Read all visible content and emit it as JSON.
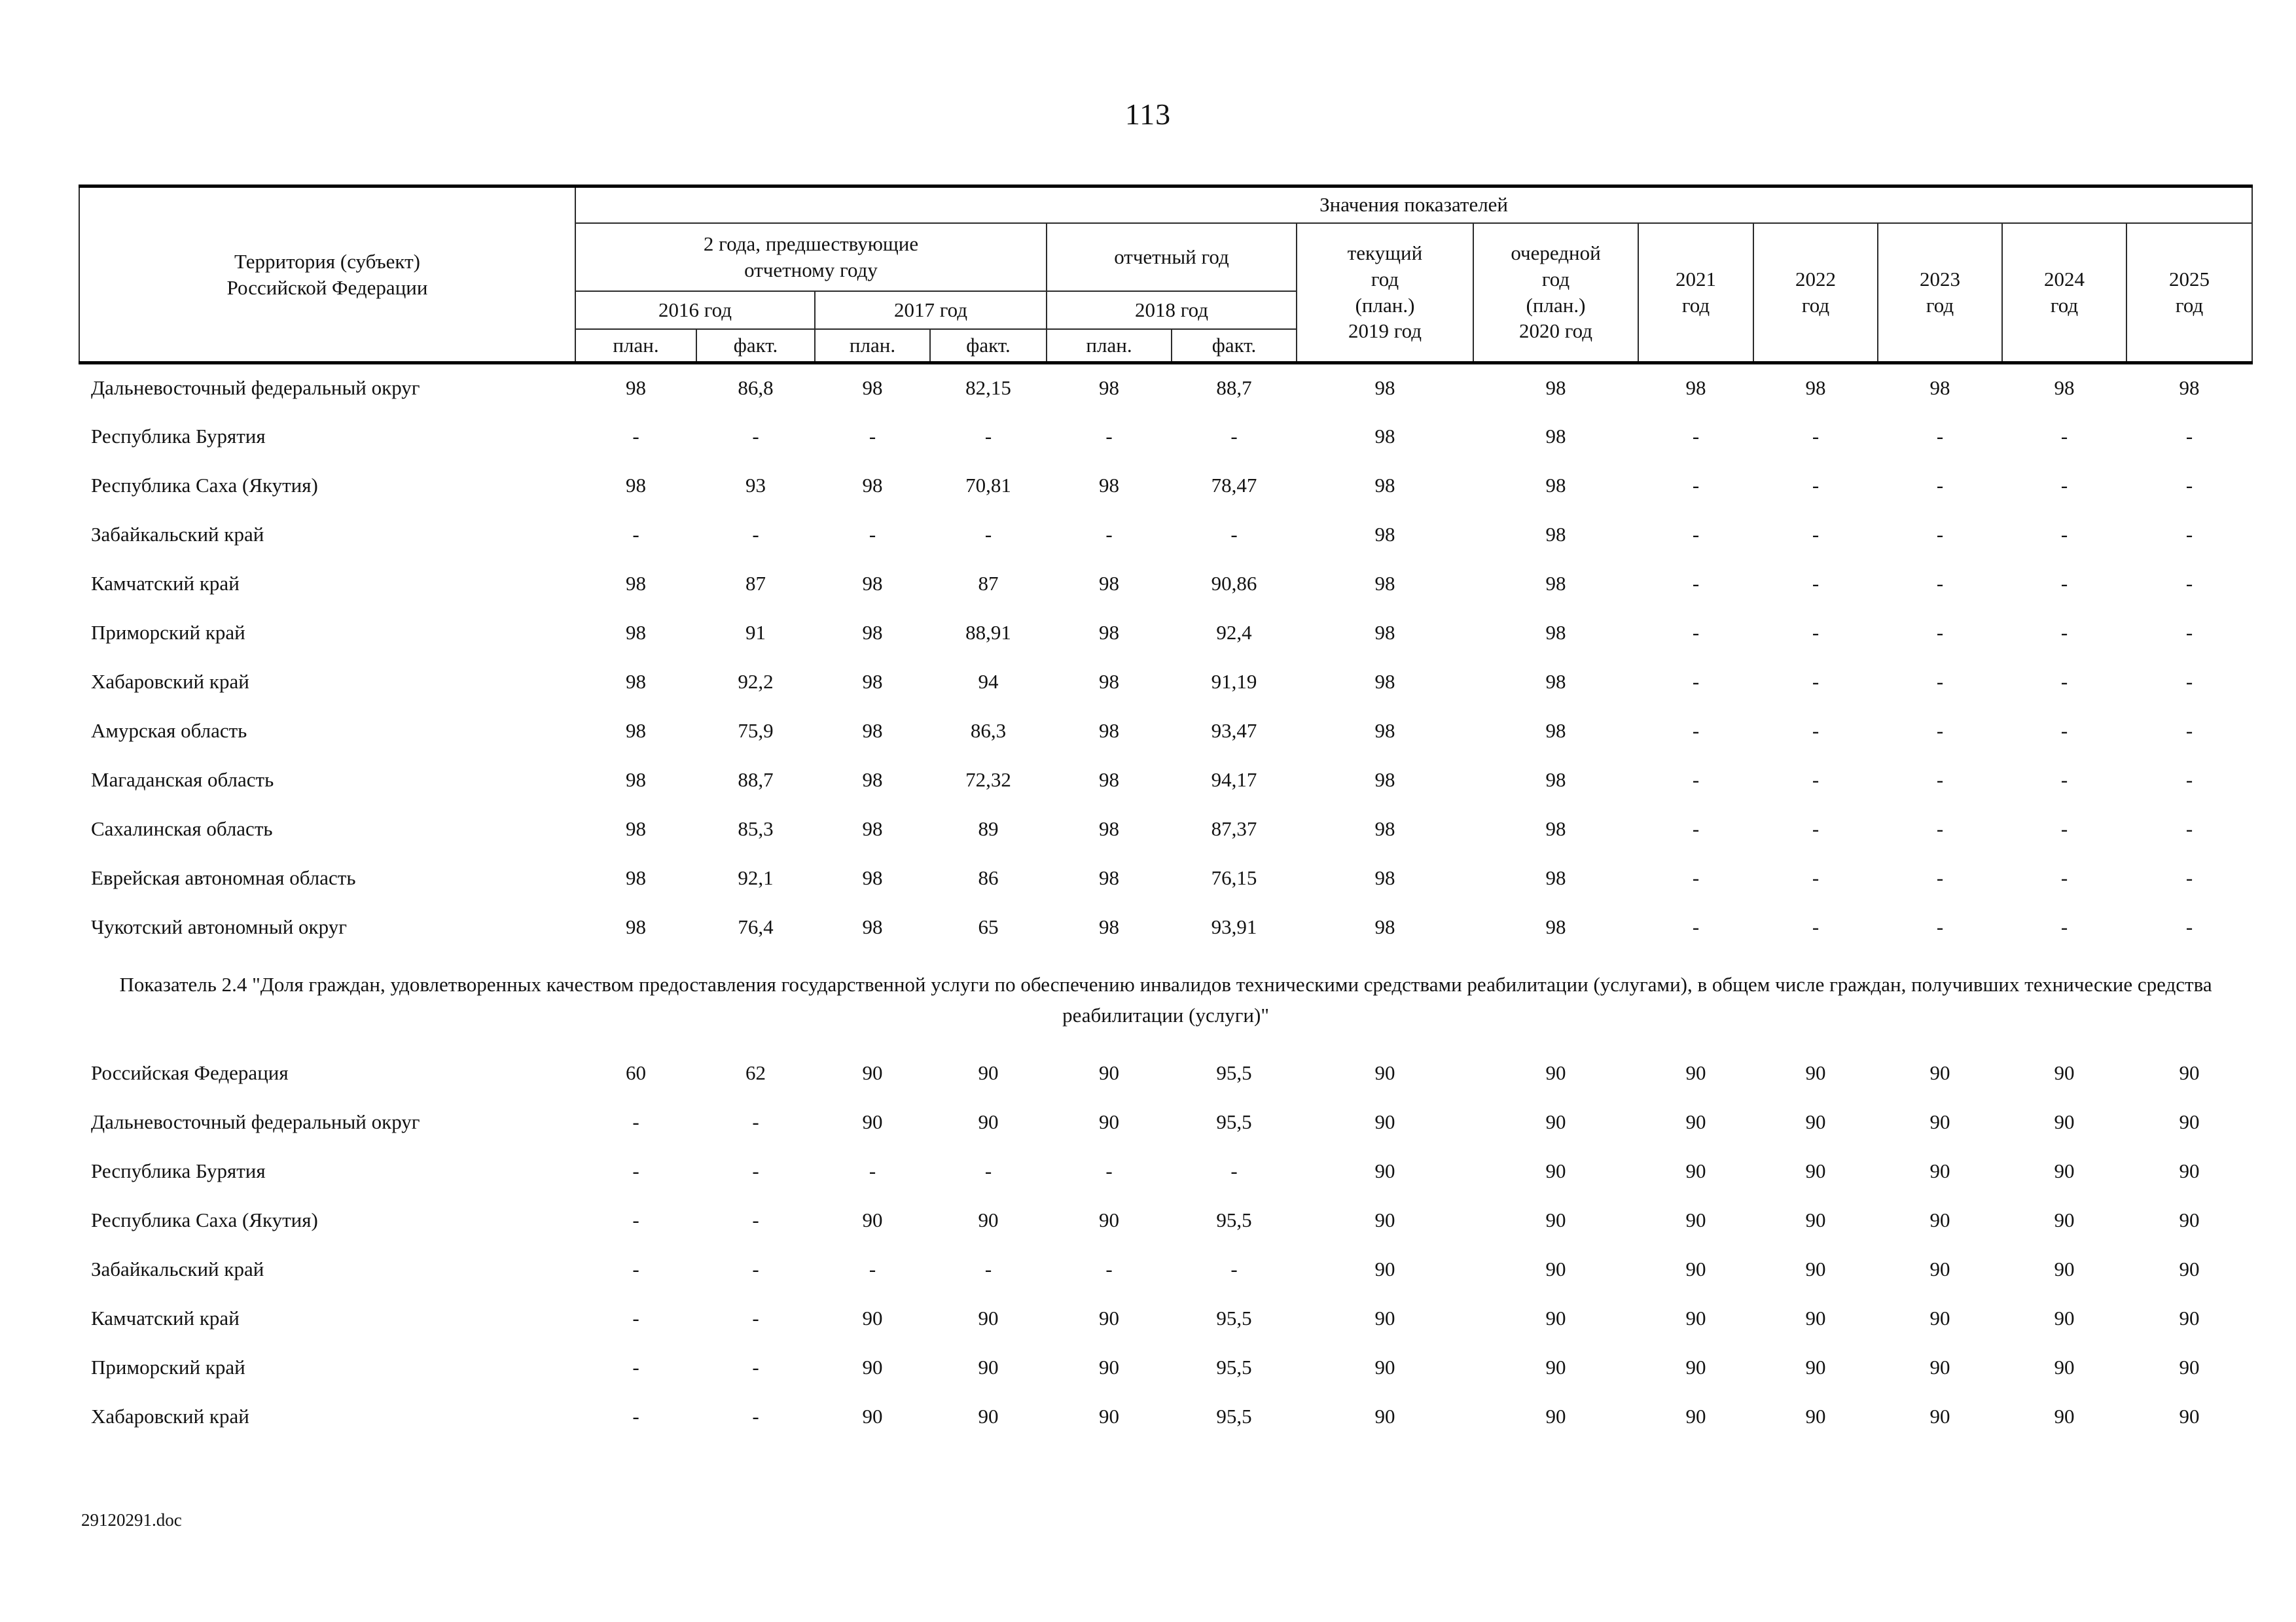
{
  "page": {
    "number": "113",
    "footer": "29120291.doc"
  },
  "table": {
    "header": {
      "territory": "Территория (субъект)\nРоссийской Федерации",
      "values_title": "Значения показателей",
      "group_prev": "2 года, предшествующие\nотчетному году",
      "group_report": "отчетный год",
      "col_2019": "текущий\nгод\n(план.)\n2019 год",
      "col_2020": "очередной\nгод\n(план.)\n2020 год",
      "year_2016": "2016 год",
      "year_2017": "2017 год",
      "year_2018": "2018 год",
      "plan": "план.",
      "fact": "факт.",
      "years": [
        "2021\nгод",
        "2022\nгод",
        "2023\nгод",
        "2024\nгод",
        "2025\nгод"
      ]
    },
    "rows_section1": [
      {
        "territory": "Дальневосточный федеральный округ",
        "values": [
          "98",
          "86,8",
          "98",
          "82,15",
          "98",
          "88,7",
          "98",
          "98",
          "98",
          "98",
          "98",
          "98",
          "98"
        ]
      },
      {
        "territory": "Республика Бурятия",
        "values": [
          "-",
          "-",
          "-",
          "-",
          "-",
          "-",
          "98",
          "98",
          "-",
          "-",
          "-",
          "-",
          "-"
        ]
      },
      {
        "territory": "Республика Саха (Якутия)",
        "values": [
          "98",
          "93",
          "98",
          "70,81",
          "98",
          "78,47",
          "98",
          "98",
          "-",
          "-",
          "-",
          "-",
          "-"
        ]
      },
      {
        "territory": "Забайкальский край",
        "values": [
          "-",
          "-",
          "-",
          "-",
          "-",
          "-",
          "98",
          "98",
          "-",
          "-",
          "-",
          "-",
          "-"
        ]
      },
      {
        "territory": "Камчатский край",
        "values": [
          "98",
          "87",
          "98",
          "87",
          "98",
          "90,86",
          "98",
          "98",
          "-",
          "-",
          "-",
          "-",
          "-"
        ]
      },
      {
        "territory": "Приморский край",
        "values": [
          "98",
          "91",
          "98",
          "88,91",
          "98",
          "92,4",
          "98",
          "98",
          "-",
          "-",
          "-",
          "-",
          "-"
        ]
      },
      {
        "territory": "Хабаровский край",
        "values": [
          "98",
          "92,2",
          "98",
          "94",
          "98",
          "91,19",
          "98",
          "98",
          "-",
          "-",
          "-",
          "-",
          "-"
        ]
      },
      {
        "territory": "Амурская область",
        "values": [
          "98",
          "75,9",
          "98",
          "86,3",
          "98",
          "93,47",
          "98",
          "98",
          "-",
          "-",
          "-",
          "-",
          "-"
        ]
      },
      {
        "territory": "Магаданская область",
        "values": [
          "98",
          "88,7",
          "98",
          "72,32",
          "98",
          "94,17",
          "98",
          "98",
          "-",
          "-",
          "-",
          "-",
          "-"
        ]
      },
      {
        "territory": "Сахалинская область",
        "values": [
          "98",
          "85,3",
          "98",
          "89",
          "98",
          "87,37",
          "98",
          "98",
          "-",
          "-",
          "-",
          "-",
          "-"
        ]
      },
      {
        "territory": "Еврейская автономная область",
        "values": [
          "98",
          "92,1",
          "98",
          "86",
          "98",
          "76,15",
          "98",
          "98",
          "-",
          "-",
          "-",
          "-",
          "-"
        ]
      },
      {
        "territory": "Чукотский автономный округ",
        "values": [
          "98",
          "76,4",
          "98",
          "65",
          "98",
          "93,91",
          "98",
          "98",
          "-",
          "-",
          "-",
          "-",
          "-"
        ]
      }
    ],
    "section_title": "Показатель 2.4 \"Доля граждан, удовлетворенных качеством предоставления государственной услуги по обеспечению инвалидов техническими средствами реабилитации (услугами), в общем числе граждан, получивших технические средства реабилитации (услуги)\"",
    "rows_section2": [
      {
        "territory": "Российская Федерация",
        "values": [
          "60",
          "62",
          "90",
          "90",
          "90",
          "95,5",
          "90",
          "90",
          "90",
          "90",
          "90",
          "90",
          "90"
        ]
      },
      {
        "territory": "Дальневосточный федеральный округ",
        "values": [
          "-",
          "-",
          "90",
          "90",
          "90",
          "95,5",
          "90",
          "90",
          "90",
          "90",
          "90",
          "90",
          "90"
        ]
      },
      {
        "territory": "Республика Бурятия",
        "values": [
          "-",
          "-",
          "-",
          "-",
          "-",
          "-",
          "90",
          "90",
          "90",
          "90",
          "90",
          "90",
          "90"
        ]
      },
      {
        "territory": "Республика Саха (Якутия)",
        "values": [
          "-",
          "-",
          "90",
          "90",
          "90",
          "95,5",
          "90",
          "90",
          "90",
          "90",
          "90",
          "90",
          "90"
        ]
      },
      {
        "territory": "Забайкальский край",
        "values": [
          "-",
          "-",
          "-",
          "-",
          "-",
          "-",
          "90",
          "90",
          "90",
          "90",
          "90",
          "90",
          "90"
        ]
      },
      {
        "territory": "Камчатский край",
        "values": [
          "-",
          "-",
          "90",
          "90",
          "90",
          "95,5",
          "90",
          "90",
          "90",
          "90",
          "90",
          "90",
          "90"
        ]
      },
      {
        "territory": "Приморский край",
        "values": [
          "-",
          "-",
          "90",
          "90",
          "90",
          "95,5",
          "90",
          "90",
          "90",
          "90",
          "90",
          "90",
          "90"
        ]
      },
      {
        "territory": "Хабаровский край",
        "values": [
          "-",
          "-",
          "90",
          "90",
          "90",
          "95,5",
          "90",
          "90",
          "90",
          "90",
          "90",
          "90",
          "90"
        ]
      }
    ]
  }
}
